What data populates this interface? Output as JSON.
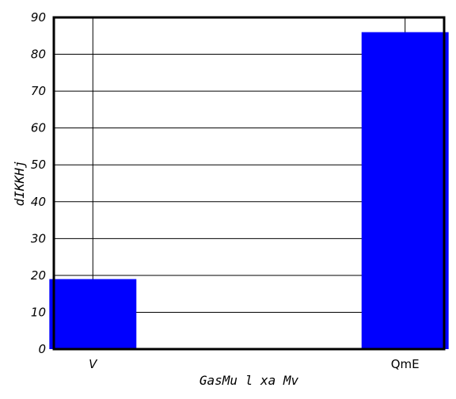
{
  "chart_data": {
    "type": "bar",
    "categories": [
      "V",
      "QmE"
    ],
    "values": [
      19,
      86
    ],
    "xlabel": "GasMu l xa Mv",
    "ylabel": "dIKKHj",
    "ylim": [
      0,
      90
    ],
    "yticks": [
      0,
      10,
      20,
      30,
      40,
      50,
      60,
      70,
      80,
      90
    ],
    "grid": true,
    "bar_color": "#0000ff",
    "grid_color": "#000000"
  }
}
